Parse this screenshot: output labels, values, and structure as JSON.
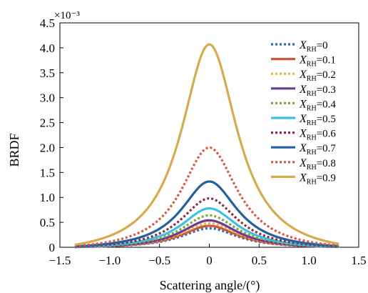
{
  "chart_data": {
    "type": "line",
    "xlabel": "Scattering angle/(°)",
    "ylabel": "BRDF",
    "y_multiplier": "×10⁻³",
    "xlim": [
      -1.5,
      1.5
    ],
    "ylim": [
      0,
      4.5
    ],
    "xticks": [
      "−1.5",
      "−1.0",
      "−0.5",
      "0",
      "0.5",
      "1.0",
      "1.5"
    ],
    "yticks": [
      "0",
      "0.5",
      "1.0",
      "1.5",
      "2.0",
      "2.5",
      "3.0",
      "3.5",
      "4.0",
      "4.5"
    ],
    "x_range": [
      -1.35,
      1.3
    ],
    "legend_position": "top-right",
    "series": [
      {
        "label_var": "X",
        "label_sub": "RH",
        "label_val": "=0",
        "peak": 0.38,
        "color": "#2e6db4",
        "dashed": true
      },
      {
        "label_var": "X",
        "label_sub": "RH",
        "label_val": "=0.1",
        "peak": 0.43,
        "color": "#d2553a",
        "dashed": false
      },
      {
        "label_var": "X",
        "label_sub": "RH",
        "label_val": "=0.2",
        "peak": 0.48,
        "color": "#e6b23c",
        "dashed": true
      },
      {
        "label_var": "X",
        "label_sub": "RH",
        "label_val": "=0.3",
        "peak": 0.54,
        "color": "#6e3a94",
        "dashed": false
      },
      {
        "label_var": "X",
        "label_sub": "RH",
        "label_val": "=0.4",
        "peak": 0.64,
        "color": "#78a83a",
        "dashed": true
      },
      {
        "label_var": "X",
        "label_sub": "RH",
        "label_val": "=0.5",
        "peak": 0.78,
        "color": "#3ec0e0",
        "dashed": false
      },
      {
        "label_var": "X",
        "label_sub": "RH",
        "label_val": "=0.6",
        "peak": 0.98,
        "color": "#8e2a3e",
        "dashed": true
      },
      {
        "label_var": "X",
        "label_sub": "RH",
        "label_val": "=0.7",
        "peak": 1.32,
        "color": "#24609e",
        "dashed": false
      },
      {
        "label_var": "X",
        "label_sub": "RH",
        "label_val": "=0.8",
        "peak": 2.0,
        "color": "#d9573f",
        "dashed": true
      },
      {
        "label_var": "X",
        "label_sub": "RH",
        "label_val": "=0.9",
        "peak": 4.07,
        "color": "#d8aa4e",
        "dashed": false
      }
    ],
    "tail_value_at_edges": 0.05
  }
}
